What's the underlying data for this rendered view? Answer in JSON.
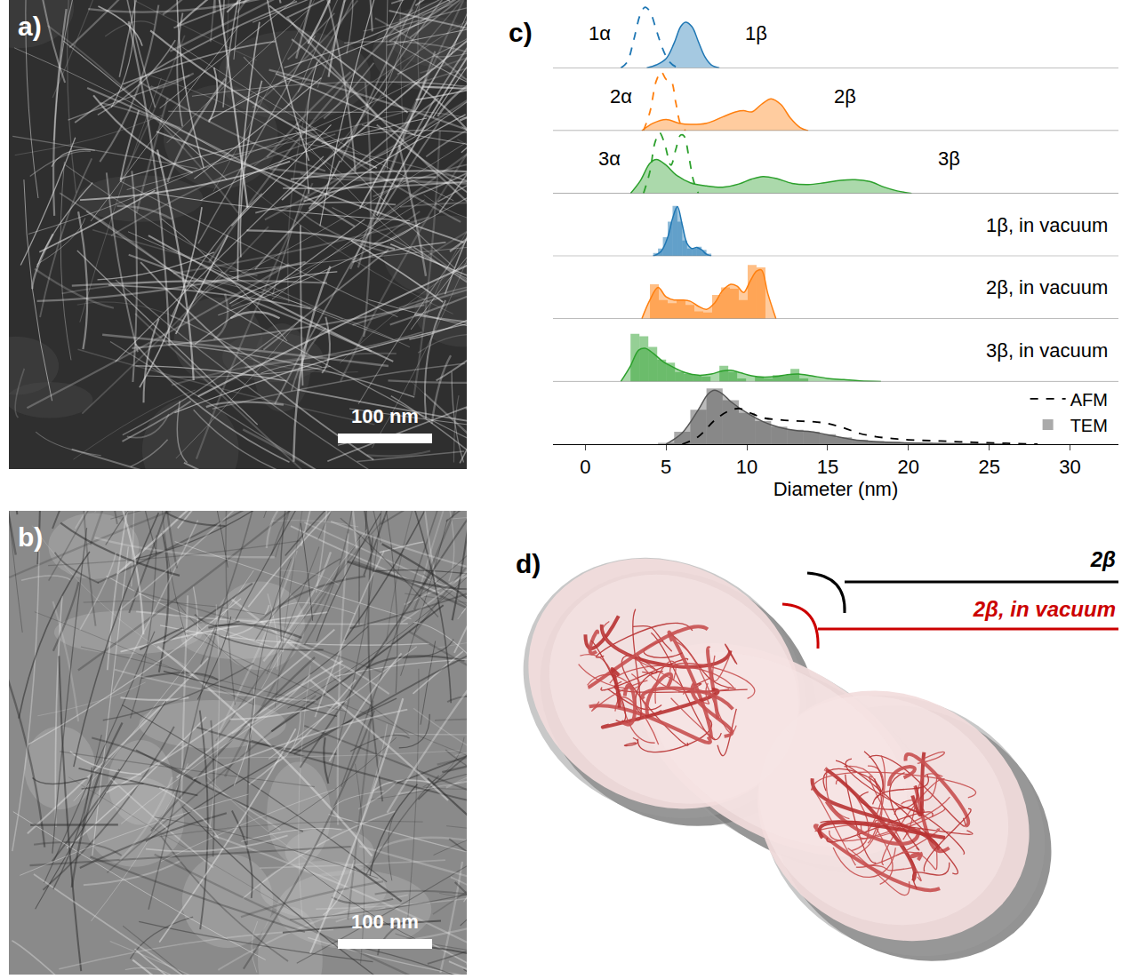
{
  "panels": {
    "a": {
      "label": "a)",
      "scale_bar": "100 nm"
    },
    "b": {
      "label": "b)",
      "scale_bar": "100 nm"
    },
    "c": {
      "label": "c)"
    },
    "d": {
      "label": "d)",
      "labels": [
        {
          "text": "2β",
          "color": "#000000"
        },
        {
          "text": "2β, in vacuum",
          "color": "#cc0000"
        }
      ]
    }
  },
  "chart_data": {
    "type": "ridgeline",
    "xlabel": "Diameter (nm)",
    "xlim": [
      -2,
      33
    ],
    "xticks": [
      0,
      5,
      10,
      15,
      20,
      25,
      30
    ],
    "ylim": [
      0,
      1
    ],
    "tick_labels": "x",
    "grid": false,
    "legend": "upper right",
    "rows": [
      {
        "series": [
          {
            "name": "1α",
            "type": "line",
            "line_style": "dashed",
            "color": "#1f77b4",
            "x": [
              2.2,
              2.6,
              3.0,
              3.4,
              3.7,
              4.0,
              4.4,
              4.8,
              5.2,
              5.6,
              6.0
            ],
            "values": [
              0,
              0.1,
              0.45,
              0.85,
              0.97,
              0.9,
              0.6,
              0.3,
              0.1,
              0.02,
              0
            ]
          },
          {
            "name": "1β",
            "type": "area",
            "color": "#1f77b4",
            "x": [
              3.8,
              4.4,
              5.0,
              5.5,
              5.9,
              6.2,
              6.6,
              7.0,
              7.4,
              7.8,
              8.3
            ],
            "values": [
              0,
              0.05,
              0.15,
              0.4,
              0.66,
              0.73,
              0.66,
              0.42,
              0.18,
              0.05,
              0
            ]
          }
        ]
      },
      {
        "series": [
          {
            "name": "2α",
            "type": "line",
            "line_style": "dashed",
            "color": "#ff7f0e",
            "x": [
              3.6,
              4.0,
              4.4,
              4.7,
              5.0,
              5.3,
              5.6,
              5.9,
              6.2
            ],
            "values": [
              0,
              0.3,
              0.8,
              0.94,
              0.82,
              0.8,
              0.45,
              0.1,
              0
            ]
          },
          {
            "name": "2β",
            "type": "area",
            "color": "#ff7f0e",
            "x": [
              3.5,
              4.2,
              5.0,
              5.8,
              6.5,
              7.5,
              8.5,
              9.3,
              9.8,
              10.3,
              10.9,
              11.5,
              12.1,
              12.7,
              13.3,
              13.8
            ],
            "values": [
              0,
              0.12,
              0.18,
              0.12,
              0.1,
              0.12,
              0.22,
              0.3,
              0.32,
              0.3,
              0.42,
              0.51,
              0.42,
              0.2,
              0.05,
              0
            ]
          }
        ]
      },
      {
        "series": [
          {
            "name": "3α",
            "type": "line",
            "line_style": "dashed",
            "color": "#2ca02c",
            "x": [
              3.6,
              4.0,
              4.3,
              4.6,
              4.9,
              5.3,
              5.6,
              5.9,
              6.1,
              6.4,
              6.7,
              7.0
            ],
            "values": [
              0,
              0.35,
              0.8,
              0.97,
              0.8,
              0.45,
              0.7,
              0.93,
              0.92,
              0.6,
              0.2,
              0
            ]
          },
          {
            "name": "3β",
            "type": "area",
            "color": "#2ca02c",
            "x": [
              2.8,
              3.4,
              4.0,
              4.4,
              5.0,
              5.6,
              6.5,
              7.5,
              8.5,
              9.5,
              10.3,
              11.0,
              11.8,
              12.8,
              13.8,
              14.8,
              15.8,
              16.7,
              17.6,
              18.5,
              19.3,
              20.2
            ],
            "values": [
              0,
              0.2,
              0.48,
              0.54,
              0.45,
              0.3,
              0.17,
              0.12,
              0.1,
              0.15,
              0.23,
              0.27,
              0.24,
              0.16,
              0.14,
              0.17,
              0.21,
              0.22,
              0.19,
              0.1,
              0.04,
              0
            ]
          }
        ]
      },
      {
        "label": "1β, in vacuum",
        "series": [
          {
            "type": "histogram",
            "color": "#1f77b4",
            "bins": [
              4.2,
              4.5,
              4.8,
              5.1,
              5.4,
              5.7,
              6.0,
              6.3,
              6.6,
              6.9,
              7.2,
              7.5,
              7.8
            ],
            "counts": [
              0.05,
              0.12,
              0.3,
              0.55,
              0.8,
              0.55,
              0.25,
              0.12,
              0.12,
              0.15,
              0.1,
              0.04
            ]
          },
          {
            "type": "area",
            "color": "#1f77b4",
            "x": [
              4.2,
              4.7,
              5.1,
              5.4,
              5.7,
              6.0,
              6.3,
              6.6,
              6.9,
              7.2,
              7.5,
              7.8
            ],
            "values": [
              0,
              0.08,
              0.3,
              0.6,
              0.79,
              0.5,
              0.2,
              0.12,
              0.14,
              0.1,
              0.03,
              0
            ]
          }
        ]
      },
      {
        "label": "2β, in vacuum",
        "series": [
          {
            "type": "histogram",
            "color": "#ff7f0e",
            "bins": [
              4.0,
              4.55,
              5.1,
              5.65,
              6.2,
              6.75,
              7.3,
              7.85,
              8.4,
              8.95,
              9.5,
              10.05,
              10.6,
              11.15
            ],
            "counts": [
              0.55,
              0.3,
              0.25,
              0.3,
              0.22,
              0.12,
              0.1,
              0.38,
              0.5,
              0.48,
              0.3,
              0.86,
              0.82
            ]
          },
          {
            "type": "area",
            "color": "#ff7f0e",
            "x": [
              3.5,
              4.0,
              4.5,
              5.0,
              5.5,
              6.0,
              6.5,
              7.0,
              7.5,
              8.0,
              8.5,
              9.0,
              9.4,
              9.8,
              10.2,
              10.6,
              10.9,
              11.3,
              11.8
            ],
            "values": [
              0,
              0.3,
              0.5,
              0.35,
              0.3,
              0.3,
              0.28,
              0.2,
              0.15,
              0.25,
              0.45,
              0.55,
              0.52,
              0.42,
              0.6,
              0.76,
              0.78,
              0.4,
              0
            ]
          }
        ]
      },
      {
        "label": "3β, in vacuum",
        "series": [
          {
            "type": "histogram",
            "color": "#2ca02c",
            "bins": [
              2.8,
              3.35,
              3.9,
              4.45,
              5.0,
              5.55,
              6.1,
              6.65,
              7.2,
              7.75,
              8.3,
              8.85,
              9.4,
              9.95,
              10.5,
              11.05,
              11.6,
              12.15,
              12.7,
              13.25,
              13.8,
              14.35
            ],
            "counts": [
              0.76,
              0.72,
              0.55,
              0.35,
              0.3,
              0.15,
              0.12,
              0.1,
              0.08,
              0,
              0.25,
              0.15,
              0.05,
              0,
              0.08,
              0.05,
              0.1,
              0.1,
              0.2,
              0.05,
              0
            ]
          },
          {
            "type": "area",
            "color": "#2ca02c",
            "x": [
              2.2,
              2.8,
              3.3,
              3.7,
              4.2,
              4.8,
              5.5,
              6.2,
              7.0,
              7.8,
              8.5,
              9.0,
              9.6,
              10.3,
              11.0,
              11.8,
              12.5,
              13.2,
              14.0,
              15.0,
              16.0,
              17.0,
              18.3
            ],
            "values": [
              0,
              0.25,
              0.5,
              0.53,
              0.45,
              0.32,
              0.22,
              0.14,
              0.1,
              0.12,
              0.17,
              0.18,
              0.14,
              0.09,
              0.07,
              0.08,
              0.11,
              0.12,
              0.09,
              0.05,
              0.03,
              0.01,
              0
            ]
          }
        ]
      },
      {
        "series": [
          {
            "name": "TEM",
            "type": "histogram",
            "color": "#555555",
            "bins": [
              4.5,
              5.5,
              6.5,
              7.5,
              8.5,
              9.5,
              10.5,
              11.5,
              12.5,
              13.5,
              14.5,
              15.5,
              16.5,
              17.5,
              18.5,
              19.5,
              20.5,
              21.5,
              22.5
            ],
            "counts": [
              0.02,
              0.2,
              0.55,
              0.89,
              0.7,
              0.5,
              0.37,
              0.28,
              0.23,
              0.2,
              0.16,
              0.11,
              0.07,
              0.05,
              0.04,
              0.03,
              0.02,
              0.01
            ]
          },
          {
            "type": "area",
            "color": "#555555",
            "x": [
              5,
              6,
              7,
              7.6,
              8,
              8.5,
              9,
              10,
              11,
              12,
              13,
              14,
              15,
              16,
              17,
              18,
              19,
              20,
              21,
              22,
              24,
              26
            ],
            "values": [
              0,
              0.18,
              0.55,
              0.8,
              0.86,
              0.8,
              0.68,
              0.5,
              0.36,
              0.27,
              0.22,
              0.2,
              0.15,
              0.1,
              0.06,
              0.04,
              0.03,
              0.02,
              0.015,
              0.01,
              0.005,
              0
            ]
          },
          {
            "name": "AFM",
            "type": "line",
            "line_style": "dashed",
            "color": "#000000",
            "x": [
              6,
              7,
              8,
              8.8,
              9.5,
              10.2,
              11,
              12,
              13,
              14,
              15,
              16,
              17,
              18,
              19,
              20,
              22,
              24,
              26,
              28
            ],
            "values": [
              0,
              0.12,
              0.38,
              0.52,
              0.57,
              0.5,
              0.42,
              0.39,
              0.37,
              0.36,
              0.33,
              0.26,
              0.17,
              0.12,
              0.09,
              0.07,
              0.05,
              0.03,
              0.015,
              0
            ]
          }
        ]
      }
    ]
  }
}
